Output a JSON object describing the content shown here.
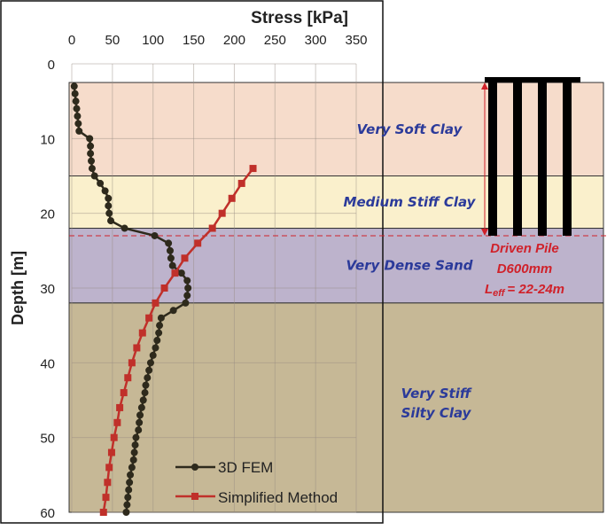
{
  "chart_data": {
    "type": "line",
    "title": "",
    "xlabel": "Stress [kPa]",
    "ylabel": "Depth [m]",
    "xlim": [
      0,
      350
    ],
    "ylim": [
      0,
      60
    ],
    "y_inverted": true,
    "x_axis_position": "top",
    "grid": true,
    "xticks": [
      "0",
      "50",
      "100",
      "150",
      "200",
      "250",
      "300",
      "350"
    ],
    "yticks": [
      "0",
      "10",
      "20",
      "30",
      "40",
      "50",
      "60"
    ],
    "legend_position": "bottom-right",
    "series": [
      {
        "name": "3D FEM",
        "color": "#2e2a1c",
        "marker": "circle",
        "depth": [
          3,
          4,
          5,
          6,
          7,
          8,
          9,
          10,
          11,
          12,
          13,
          14,
          15,
          16,
          17,
          18,
          19,
          20,
          21,
          22,
          23,
          24,
          25,
          26,
          27,
          28,
          29,
          30,
          31,
          32,
          33,
          34,
          35,
          36,
          37,
          38,
          39,
          40,
          41,
          42,
          43,
          44,
          45,
          46,
          47,
          48,
          49,
          50,
          51,
          52,
          53,
          54,
          55,
          56,
          57,
          58,
          59,
          60
        ],
        "stress": [
          3,
          4,
          5,
          6,
          7,
          8,
          9,
          22,
          23,
          23,
          24,
          25,
          28,
          35,
          41,
          45,
          45,
          46,
          48,
          65,
          102,
          119,
          121,
          122,
          124,
          135,
          142,
          143,
          142,
          140,
          125,
          110,
          108,
          107,
          105,
          103,
          100,
          97,
          95,
          93,
          91,
          90,
          88,
          86,
          84,
          83,
          82,
          79,
          78,
          77,
          76,
          74,
          72,
          71,
          70,
          69,
          68,
          67
        ]
      },
      {
        "name": "Simplified Method",
        "color": "#c0302a",
        "marker": "square",
        "depth": [
          14,
          16,
          18,
          20,
          22,
          24,
          26,
          28,
          30,
          32,
          34,
          36,
          38,
          40,
          42,
          44,
          46,
          48,
          50,
          52,
          54,
          56,
          58,
          60
        ],
        "stress": [
          223,
          209,
          197,
          185,
          173,
          155,
          139,
          127,
          114,
          103,
          95,
          87,
          80,
          74,
          69,
          64,
          59,
          56,
          52,
          49,
          46,
          44,
          42,
          39
        ]
      }
    ],
    "layers": [
      {
        "name": "Very Soft Clay",
        "top": 2.5,
        "bottom": 15,
        "color": "#f6dccb"
      },
      {
        "name": "Medium Stiff Clay",
        "top": 15,
        "bottom": 22,
        "color": "#faf0cc"
      },
      {
        "name": "Very Dense Sand",
        "top": 22,
        "bottom": 32,
        "color": "#bdb3cc"
      },
      {
        "name": "Very Stiff Silty Clay",
        "top": 32,
        "bottom": 60,
        "color": "#c6b896"
      }
    ],
    "annotations": {
      "pile_label": "Driven Pile",
      "pile_diameter": "D600mm",
      "pile_length_prefix": "L",
      "pile_length_sub": "eff",
      "pile_length_value": "= 22-24m",
      "pile_tip_depth": 23,
      "pile_color": "#000000",
      "annotation_color": "#d0212a"
    },
    "layer_label_lines": [
      [
        "Very Soft Clay"
      ],
      [
        "Medium Stiff Clay"
      ],
      [
        "Very Dense Sand"
      ],
      [
        "Very Stiff",
        "Silty Clay"
      ]
    ]
  }
}
